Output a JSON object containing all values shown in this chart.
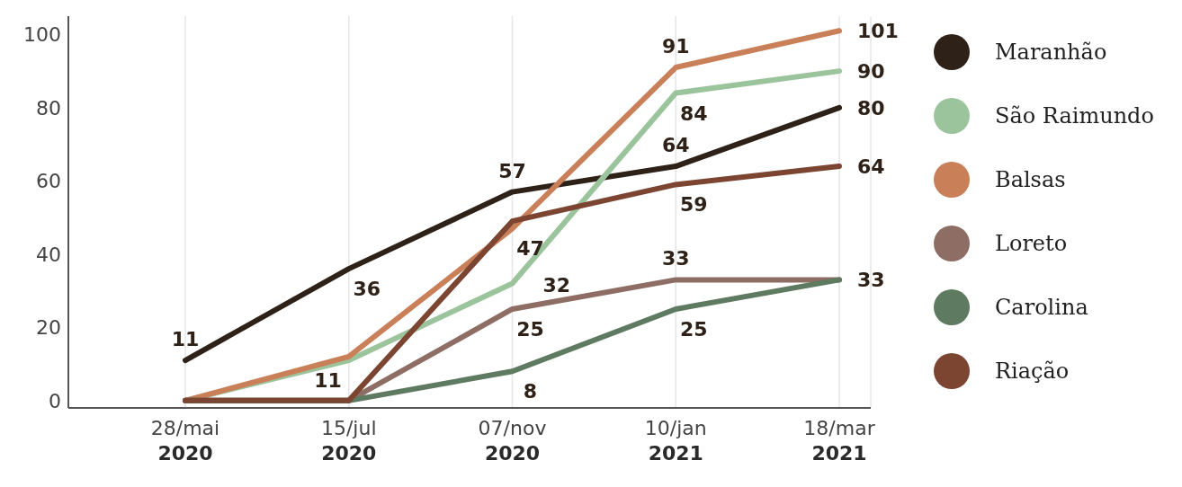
{
  "chart_data": {
    "type": "line",
    "categories": [
      "28/mai 2020",
      "15/jul 2020",
      "07/nov 2020",
      "10/jan 2021",
      "18/mar 2021"
    ],
    "series": [
      {
        "name": "Maranhão",
        "color": "#2e2117",
        "values": [
          11,
          36,
          57,
          64,
          80
        ],
        "value_labels": [
          "11",
          "36",
          "57",
          "64",
          "80"
        ]
      },
      {
        "name": "São Raimundo",
        "color": "#9cc49c",
        "values": [
          0,
          11,
          32,
          84,
          90
        ],
        "value_labels": [
          null,
          "11",
          "32",
          "84",
          "90"
        ]
      },
      {
        "name": "Balsas",
        "color": "#c97f58",
        "values": [
          0,
          12,
          47,
          91,
          101
        ],
        "value_labels": [
          null,
          null,
          "47",
          "91",
          "101"
        ]
      },
      {
        "name": "Loreto",
        "color": "#8e6e64",
        "values": [
          0,
          0,
          25,
          33,
          33
        ],
        "value_labels": [
          null,
          null,
          "25",
          "33",
          null
        ]
      },
      {
        "name": "Carolina",
        "color": "#5e7a60",
        "values": [
          0,
          0,
          8,
          25,
          33
        ],
        "value_labels": [
          null,
          null,
          "8",
          "25",
          "33"
        ]
      },
      {
        "name": "Riação",
        "color": "#7b4532",
        "values": [
          0,
          0,
          49,
          59,
          64
        ],
        "value_labels": [
          null,
          null,
          null,
          "59",
          "64"
        ]
      }
    ],
    "ylim": [
      -2,
      105
    ],
    "yticks": [
      0,
      20,
      40,
      60,
      80,
      100
    ],
    "grid": "x",
    "legend": "right",
    "marker": "none",
    "line_style": "solid"
  }
}
